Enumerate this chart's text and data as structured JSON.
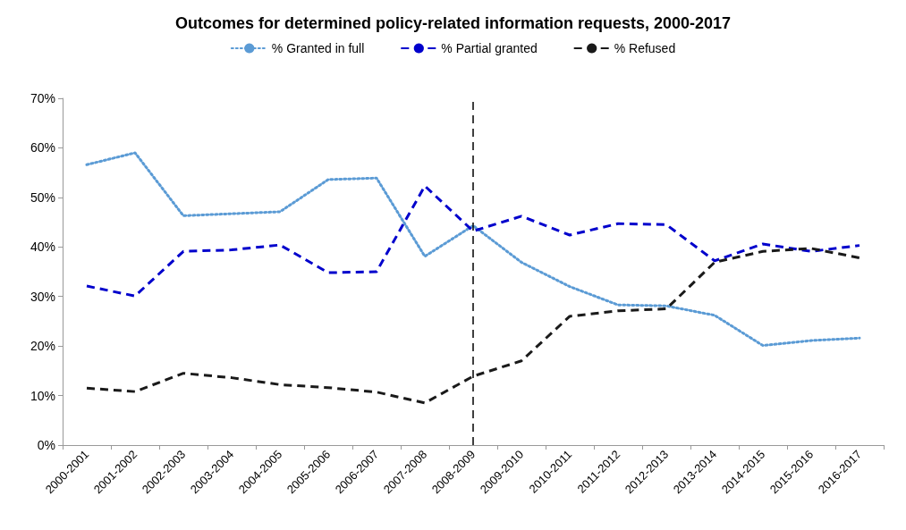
{
  "chart_data": {
    "type": "line",
    "title": "Outcomes for determined policy-related information requests, 2000-2017",
    "categories": [
      "2000-2001",
      "2001-2002",
      "2002-2003",
      "2003-2004",
      "2004-2005",
      "2005-2006",
      "2006-2007",
      "2007-2008",
      "2008-2009",
      "2009-2010",
      "2010-2011",
      "2011-2012",
      "2012-2013",
      "2013-2014",
      "2014-2015",
      "2015-2016",
      "2016-2017"
    ],
    "series": [
      {
        "name": "% Granted in full",
        "color": "#5b9bd5",
        "line_style": "dotted",
        "values": [
          56.6,
          59.0,
          46.3,
          46.7,
          47.1,
          53.6,
          53.9,
          38.1,
          44.3,
          36.9,
          32.0,
          28.3,
          28.1,
          26.2,
          20.1,
          21.1,
          21.6
        ]
      },
      {
        "name": "% Partial granted",
        "color": "#0000cc",
        "line_style": "dashed",
        "values": [
          32.1,
          30.1,
          39.1,
          39.4,
          40.4,
          34.8,
          35.0,
          52.3,
          43.2,
          46.2,
          42.4,
          44.7,
          44.5,
          37.2,
          40.6,
          39.1,
          40.3
        ]
      },
      {
        "name": "% Refused",
        "color": "#1a1a1a",
        "line_style": "dashed",
        "values": [
          11.5,
          10.8,
          14.5,
          13.6,
          12.2,
          11.6,
          10.7,
          8.5,
          13.9,
          17.0,
          26.0,
          27.1,
          27.5,
          36.9,
          39.1,
          39.7,
          37.8
        ]
      }
    ],
    "ylim": [
      0,
      70
    ],
    "yticks": [
      {
        "value": 0,
        "label": "0%"
      },
      {
        "value": 10,
        "label": "10%"
      },
      {
        "value": 20,
        "label": "20%"
      },
      {
        "value": 30,
        "label": "30%"
      },
      {
        "value": 40,
        "label": "40%"
      },
      {
        "value": 50,
        "label": "50%"
      },
      {
        "value": 60,
        "label": "60%"
      },
      {
        "value": 70,
        "label": "70%"
      }
    ],
    "ref_lines": [
      {
        "axis": "x",
        "value": "2008-2009",
        "color": "#000000",
        "line_style": "dashed"
      }
    ],
    "grid": false,
    "legend": "top",
    "marker": "none"
  }
}
